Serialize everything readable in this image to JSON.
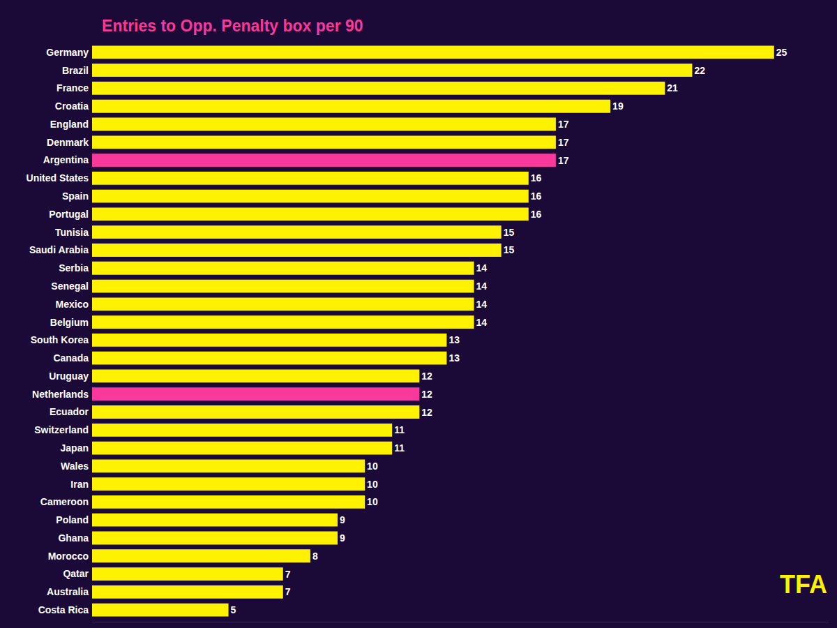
{
  "chart_data": {
    "type": "bar",
    "orientation": "horizontal",
    "title": "Entries to Opp. Penalty box per 90",
    "categories": [
      "Germany",
      "Brazil",
      "France",
      "Croatia",
      "England",
      "Denmark",
      "Argentina",
      "United States",
      "Spain",
      "Portugal",
      "Tunisia",
      "Saudi Arabia",
      "Serbia",
      "Senegal",
      "Mexico",
      "Belgium",
      "South Korea",
      "Canada",
      "Uruguay",
      "Netherlands",
      "Ecuador",
      "Switzerland",
      "Japan",
      "Wales",
      "Iran",
      "Cameroon",
      "Poland",
      "Ghana",
      "Morocco",
      "Qatar",
      "Australia",
      "Costa Rica"
    ],
    "values": [
      25,
      22,
      21,
      19,
      17,
      17,
      17,
      16,
      16,
      16,
      15,
      15,
      14,
      14,
      14,
      14,
      13,
      13,
      12,
      12,
      12,
      11,
      11,
      10,
      10,
      10,
      9,
      9,
      8,
      7,
      7,
      5
    ],
    "colors": [
      "#fff200",
      "#fff200",
      "#fff200",
      "#fff200",
      "#fff200",
      "#fff200",
      "#f8389a",
      "#fff200",
      "#fff200",
      "#fff200",
      "#fff200",
      "#fff200",
      "#fff200",
      "#fff200",
      "#fff200",
      "#fff200",
      "#fff200",
      "#fff200",
      "#fff200",
      "#f8389a",
      "#fff200",
      "#fff200",
      "#fff200",
      "#fff200",
      "#fff200",
      "#fff200",
      "#fff200",
      "#fff200",
      "#fff200",
      "#fff200",
      "#fff200",
      "#fff200"
    ],
    "xlim": [
      0,
      27
    ],
    "data_labels": true,
    "tick_labels": "y",
    "grid": false,
    "annotations": [
      {
        "text": "TFA"
      }
    ]
  }
}
